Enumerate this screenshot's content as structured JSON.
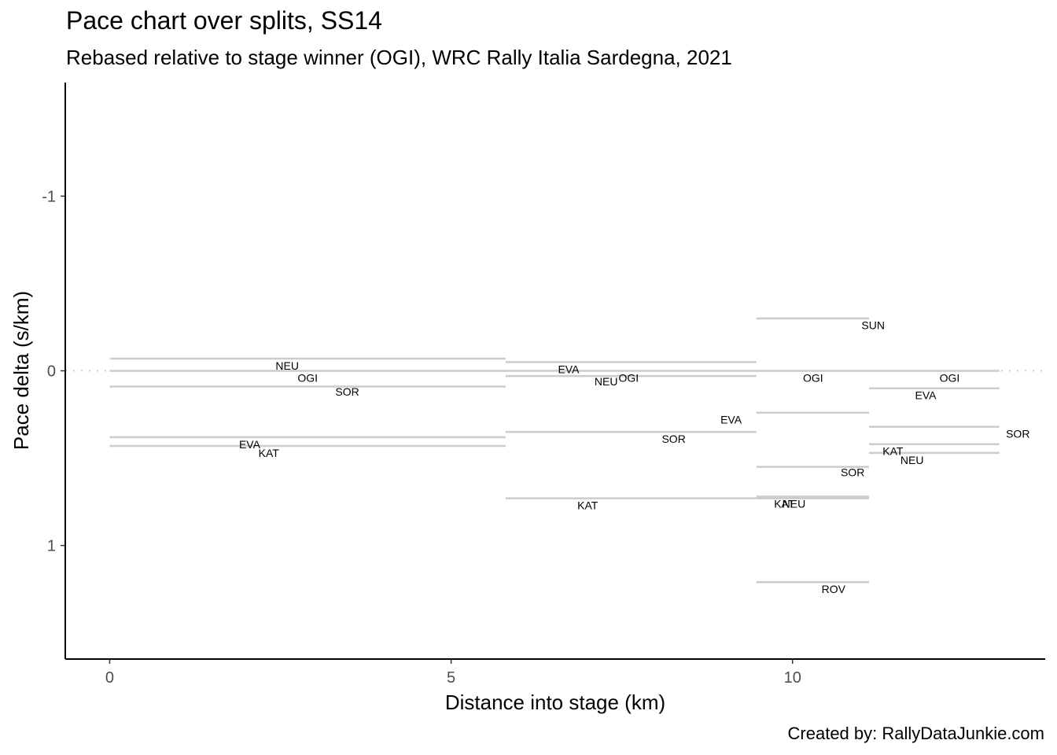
{
  "chart_data": {
    "type": "line",
    "title": "Pace chart over splits, SS14",
    "subtitle": "Rebased relative to stage winner (OGI), WRC Rally Italia Sardegna, 2021",
    "xlabel": "Distance into stage (km)",
    "ylabel": "Pace delta (s/km)",
    "caption": "Created by: RallyDataJunkie.com",
    "xlim": [
      -0.65,
      13.7
    ],
    "ylim": [
      1.65,
      -1.65
    ],
    "y_reversed": true,
    "x_ticks": [
      0,
      5,
      10
    ],
    "y_ticks": [
      -1,
      0,
      1
    ],
    "x_tick_labels": [
      "0",
      "5",
      "10"
    ],
    "y_tick_labels": [
      "-1",
      "0",
      "1"
    ],
    "reference_line": 0,
    "grid": false,
    "segment_color": "#cccccc",
    "segments": [
      {
        "label": "NEU",
        "x0": 0.0,
        "x1": 5.8,
        "y": -0.07
      },
      {
        "label": "OGI",
        "x0": 0.0,
        "x1": 5.8,
        "y": 0.0
      },
      {
        "label": "SOR",
        "x0": 0.0,
        "x1": 5.8,
        "y": 0.09
      },
      {
        "label": "EVA",
        "x0": 0.0,
        "x1": 5.8,
        "y": 0.38
      },
      {
        "label": "KAT",
        "x0": 0.0,
        "x1": 5.8,
        "y": 0.43
      },
      {
        "label": "EVA",
        "x0": 5.8,
        "x1": 9.47,
        "y": -0.05
      },
      {
        "label": "NEU",
        "x0": 5.8,
        "x1": 9.47,
        "y": 0.03
      },
      {
        "label": "OGI",
        "x0": 5.8,
        "x1": 9.47,
        "y": 0.0
      },
      {
        "label": "SOR",
        "x0": 5.8,
        "x1": 9.47,
        "y": 0.35
      },
      {
        "label": "KAT",
        "x0": 5.8,
        "x1": 9.47,
        "y": 0.73
      },
      {
        "label": "SUN",
        "x0": 9.47,
        "x1": 11.12,
        "y": -0.3
      },
      {
        "label": "OGI",
        "x0": 9.47,
        "x1": 11.12,
        "y": 0.0
      },
      {
        "label": "EVA",
        "x0": 9.47,
        "x1": 11.12,
        "y": 0.24
      },
      {
        "label": "SOR",
        "x0": 9.47,
        "x1": 11.12,
        "y": 0.55
      },
      {
        "label": "KAT",
        "x0": 9.47,
        "x1": 11.12,
        "y": 0.73
      },
      {
        "label": "NEU",
        "x0": 9.47,
        "x1": 11.12,
        "y": 0.72
      },
      {
        "label": "ROV",
        "x0": 9.47,
        "x1": 11.12,
        "y": 1.21
      },
      {
        "label": "OGI",
        "x0": 11.12,
        "x1": 13.03,
        "y": 0.0
      },
      {
        "label": "EVA",
        "x0": 11.12,
        "x1": 13.03,
        "y": 0.1
      },
      {
        "label": "SOR",
        "x0": 11.12,
        "x1": 13.03,
        "y": 0.32
      },
      {
        "label": "KAT",
        "x0": 11.12,
        "x1": 13.03,
        "y": 0.42
      },
      {
        "label": "NEU",
        "x0": 11.12,
        "x1": 13.03,
        "y": 0.47
      }
    ],
    "labels": [
      {
        "text": "NEU",
        "x": 2.6,
        "y": -0.03
      },
      {
        "text": "OGI",
        "x": 2.9,
        "y": 0.04
      },
      {
        "text": "SOR",
        "x": 3.48,
        "y": 0.12
      },
      {
        "text": "EVA",
        "x": 2.05,
        "y": 0.42
      },
      {
        "text": "KAT",
        "x": 2.33,
        "y": 0.47
      },
      {
        "text": "EVA",
        "x": 6.72,
        "y": -0.01
      },
      {
        "text": "NEU",
        "x": 7.27,
        "y": 0.06
      },
      {
        "text": "OGI",
        "x": 7.6,
        "y": 0.04
      },
      {
        "text": "SOR",
        "x": 8.26,
        "y": 0.39
      },
      {
        "text": "KAT",
        "x": 7.0,
        "y": 0.77
      },
      {
        "text": "SUN",
        "x": 11.18,
        "y": -0.26
      },
      {
        "text": "OGI",
        "x": 10.3,
        "y": 0.04
      },
      {
        "text": "EVA",
        "x": 11.95,
        "y": 0.14
      },
      {
        "text": "EVA",
        "x": 9.1,
        "y": 0.28
      },
      {
        "text": "SOR",
        "x": 13.3,
        "y": 0.36
      },
      {
        "text": "KAT",
        "x": 11.47,
        "y": 0.46
      },
      {
        "text": "NEU",
        "x": 11.75,
        "y": 0.51
      },
      {
        "text": "SOR",
        "x": 10.88,
        "y": 0.58
      },
      {
        "text": "KAT",
        "x": 9.88,
        "y": 0.76
      },
      {
        "text": "NEU",
        "x": 10.02,
        "y": 0.76
      },
      {
        "text": "ROV",
        "x": 10.6,
        "y": 1.25
      },
      {
        "text": "OGI",
        "x": 12.3,
        "y": 0.04
      }
    ]
  }
}
